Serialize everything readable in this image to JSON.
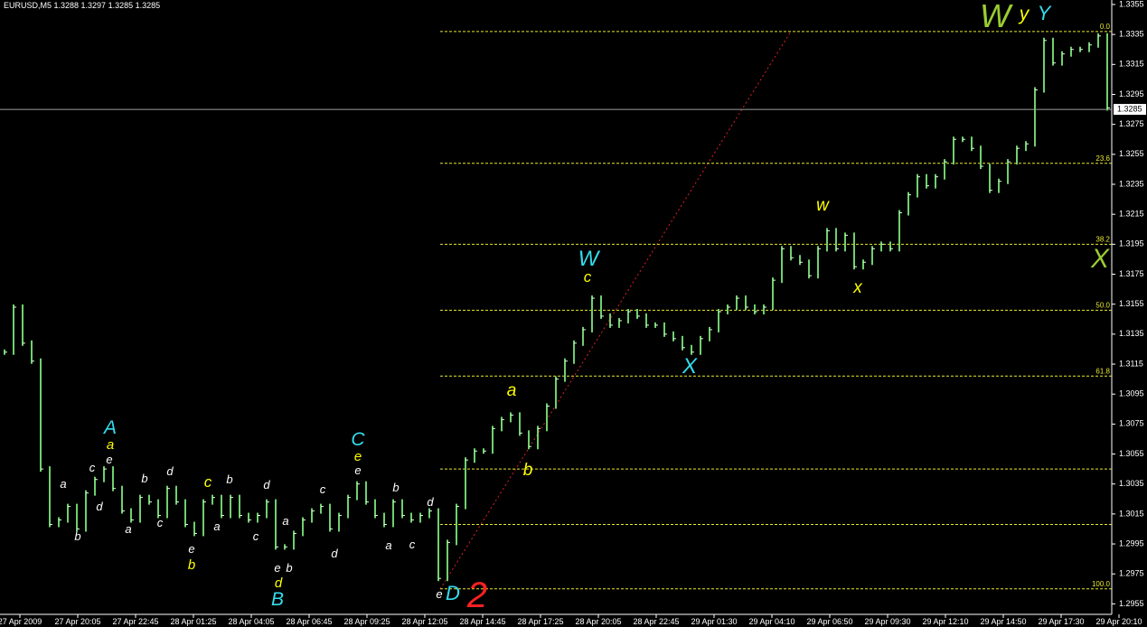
{
  "chart_data": {
    "type": "price",
    "title": "EURUSD,M5  1.3288 1.3297 1.3285 1.3285",
    "color": "#6fd06f",
    "ylim": [
      1.2948,
      1.3358
    ],
    "yticks": [
      1.3355,
      1.3335,
      1.3315,
      1.3295,
      1.3275,
      1.3255,
      1.3235,
      1.3215,
      1.3195,
      1.3175,
      1.3155,
      1.3135,
      1.3115,
      1.3095,
      1.3075,
      1.3055,
      1.3035,
      1.3015,
      1.2995,
      1.2975,
      1.2955
    ],
    "x_labels": [
      "27 Apr 2009",
      "27 Apr 20:05",
      "27 Apr 22:45",
      "28 Apr 01:25",
      "28 Apr 04:05",
      "28 Apr 06:45",
      "28 Apr 09:25",
      "28 Apr 12:05",
      "28 Apr 14:45",
      "28 Apr 17:25",
      "28 Apr 20:05",
      "28 Apr 22:45",
      "29 Apr 01:30",
      "29 Apr 04:10",
      "29 Apr 06:50",
      "29 Apr 09:30",
      "29 Apr 12:10",
      "29 Apr 14:50",
      "29 Apr 17:30",
      "29 Apr 20:10"
    ],
    "values": [
      1.3123,
      1.3153,
      1.3129,
      1.3117,
      1.3045,
      1.3008,
      1.3011,
      1.302,
      1.3005,
      1.3029,
      1.3038,
      1.3045,
      1.3032,
      1.3017,
      1.3011,
      1.3026,
      1.3023,
      1.3014,
      1.3032,
      1.3023,
      1.3008,
      1.3002,
      1.3023,
      1.3026,
      1.3014,
      1.3026,
      1.3014,
      1.3011,
      1.3014,
      1.3023,
      1.2993,
      1.2993,
      1.3002,
      1.3011,
      1.3017,
      1.302,
      1.3005,
      1.3014,
      1.3026,
      1.3035,
      1.3023,
      1.3014,
      1.3008,
      1.3023,
      1.3014,
      1.3011,
      1.3014,
      1.3017,
      1.2972,
      1.2996,
      1.302,
      1.3051,
      1.3057,
      1.3057,
      1.3072,
      1.3078,
      1.3081,
      1.3069,
      1.306,
      1.3072,
      1.3087,
      1.3105,
      1.3117,
      1.3129,
      1.3138,
      1.3159,
      1.3147,
      1.3141,
      1.3144,
      1.315,
      1.3147,
      1.3141,
      1.3141,
      1.3135,
      1.3132,
      1.3126,
      1.3123,
      1.3132,
      1.3138,
      1.315,
      1.3153,
      1.3159,
      1.3153,
      1.315,
      1.3153,
      1.3171,
      1.3192,
      1.3186,
      1.3183,
      1.3174,
      1.3192,
      1.3204,
      1.3192,
      1.3201,
      1.318,
      1.3183,
      1.3192,
      1.3195,
      1.3192,
      1.3216,
      1.3228,
      1.324,
      1.3234,
      1.324,
      1.325,
      1.3265,
      1.3265,
      1.3259,
      1.3247,
      1.3231,
      1.3237,
      1.325,
      1.3259,
      1.3262,
      1.3298,
      1.3331,
      1.3316,
      1.3322,
      1.3325,
      1.3325,
      1.3328,
      1.3334,
      1.3286
    ],
    "fib_levels": [
      {
        "level": "0.0",
        "price": 1.3337
      },
      {
        "level": "23.6",
        "price": 1.3249
      },
      {
        "level": "38.2",
        "price": 1.3195
      },
      {
        "level": "50.0",
        "price": 1.3151
      },
      {
        "level": "61.8",
        "price": 1.3107
      },
      {
        "level": "100.0",
        "price": 1.2965
      }
    ],
    "extra_levels": [
      1.3045,
      1.3008
    ],
    "current_price": 1.3285,
    "annotations": [
      {
        "text": "a",
        "color": "#ffffff"
      },
      {
        "text": "b",
        "color": "#ffffff"
      },
      {
        "text": "c",
        "color": "#ffffff"
      },
      {
        "text": "d",
        "color": "#ffffff"
      },
      {
        "text": "e",
        "color": "#ffffff"
      },
      {
        "text": "a",
        "color": "#ffffff"
      },
      {
        "text": "b",
        "color": "#ffffff"
      },
      {
        "text": "c",
        "color": "#ffffff"
      },
      {
        "text": "d",
        "color": "#ffffff"
      },
      {
        "text": "c",
        "color": "#ffff00"
      },
      {
        "text": "b",
        "color": "#ffffff"
      },
      {
        "text": "a",
        "color": "#ffffff"
      },
      {
        "text": "d",
        "color": "#ffffff"
      },
      {
        "text": "c",
        "color": "#ffffff"
      },
      {
        "text": "e",
        "color": "#ffffff"
      },
      {
        "text": "b",
        "color": "#ffff00"
      },
      {
        "text": "e",
        "color": "#ffffff"
      },
      {
        "text": "d",
        "color": "#ffff00"
      },
      {
        "text": "b",
        "color": "#ffffff"
      },
      {
        "text": "a",
        "color": "#ffffff"
      },
      {
        "text": "c",
        "color": "#ffffff"
      },
      {
        "text": "d",
        "color": "#ffffff"
      },
      {
        "text": "e",
        "color": "#ffffff"
      },
      {
        "text": "e",
        "color": "#ffff00"
      },
      {
        "text": "b",
        "color": "#ffffff"
      },
      {
        "text": "a",
        "color": "#ffffff"
      },
      {
        "text": "c",
        "color": "#ffffff"
      },
      {
        "text": "d",
        "color": "#ffffff"
      },
      {
        "text": "e",
        "color": "#ffffff"
      },
      {
        "text": "A",
        "color": "#33ddee"
      },
      {
        "text": "a",
        "color": "#ffff00"
      },
      {
        "text": "B",
        "color": "#33ddee"
      },
      {
        "text": "C",
        "color": "#33ddee"
      },
      {
        "text": "D",
        "color": "#33ddee"
      },
      {
        "text": "2",
        "color": "#ff2020"
      },
      {
        "text": "W",
        "color": "#33ddee"
      },
      {
        "text": "c",
        "color": "#ffff00"
      },
      {
        "text": "a",
        "color": "#ffff00"
      },
      {
        "text": "b",
        "color": "#ffff00"
      },
      {
        "text": "X",
        "color": "#33ddee"
      },
      {
        "text": "w",
        "color": "#ffff00"
      },
      {
        "text": "x",
        "color": "#ffff00"
      },
      {
        "text": "W",
        "color": "#9acd32"
      },
      {
        "text": "y",
        "color": "#ffff00"
      },
      {
        "text": "Y",
        "color": "#33ddee"
      },
      {
        "text": "X",
        "color": "#9acd32"
      }
    ]
  }
}
